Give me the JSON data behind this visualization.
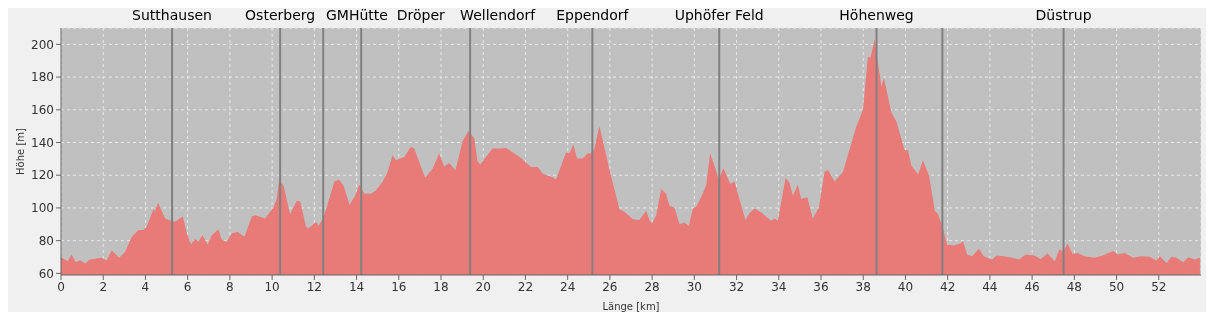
{
  "chart_data": {
    "type": "area",
    "xlabel": "Länge [km]",
    "ylabel": "Höhe [m]",
    "x": [
      0,
      0.32,
      0.5,
      0.7,
      0.9,
      1.14,
      1.37,
      1.93,
      2.16,
      2.4,
      2.75,
      3.03,
      3.35,
      3.67,
      3.9,
      4.06,
      4.38,
      4.45,
      4.6,
      4.93,
      5.17,
      5.4,
      5.77,
      5.96,
      6.16,
      6.35,
      6.5,
      6.7,
      6.95,
      7.14,
      7.46,
      7.6,
      7.85,
      8.09,
      8.37,
      8.69,
      9.04,
      9.2,
      9.67,
      10.06,
      10.22,
      10.33,
      10.54,
      10.85,
      11.17,
      11.33,
      11.6,
      11.7,
      12.1,
      12.2,
      12.43,
      12.75,
      12.95,
      13.17,
      13.38,
      13.67,
      13.93,
      14.13,
      14.37,
      14.68,
      14.92,
      15.23,
      15.47,
      15.7,
      15.86,
      16.26,
      16.57,
      16.73,
      17.25,
      17.6,
      17.91,
      18.15,
      18.39,
      18.68,
      19.03,
      19.3,
      19.58,
      19.73,
      19.86,
      20.44,
      20.84,
      21.08,
      21.79,
      22.26,
      22.58,
      22.82,
      23.29,
      23.45,
      23.92,
      24.08,
      24.27,
      24.44,
      24.71,
      24.95,
      25.1,
      25.26,
      25.5,
      25.78,
      25.97,
      26.45,
      26.69,
      27.08,
      27.4,
      27.72,
      27.87,
      28,
      28.19,
      28.43,
      28.66,
      28.82,
      29.06,
      29.3,
      29.53,
      29.74,
      29.93,
      30.09,
      30.32,
      30.56,
      30.75,
      30.95,
      31.16,
      31.38,
      31.7,
      31.9,
      32.42,
      32.61,
      32.85,
      33.17,
      33.64,
      33.8,
      33.96,
      34.32,
      34.51,
      34.67,
      34.9,
      35.06,
      35.35,
      35.61,
      35.9,
      36.17,
      36.34,
      36.64,
      37.04,
      37.32,
      37.67,
      37.99,
      38.22,
      38.35,
      38.54,
      38.86,
      38.98,
      39.33,
      39.57,
      39.96,
      40.12,
      40.28,
      40.6,
      40.83,
      41.12,
      41.39,
      41.55,
      41.79,
      41.97,
      42.29,
      42.6,
      42.73,
      42.92,
      43.16,
      43.48,
      43.71,
      44.11,
      44.32,
      44.67,
      45.06,
      45.38,
      45.7,
      46.1,
      46.41,
      46.73,
      47.08,
      47.29,
      47.49,
      47.68,
      47.92,
      48.16,
      48.48,
      48.95,
      49.35,
      49.83,
      50.06,
      50.38,
      50.78,
      51.17,
      51.57,
      51.89,
      52.05,
      52.37,
      52.6,
      52.84,
      53.16,
      53.4,
      53.71,
      53.95
    ],
    "series": [
      {
        "color": "#e87a78",
        "values": [
          69.9,
          67.4,
          71.5,
          67,
          68,
          66,
          68.4,
          69.5,
          67.8,
          74.2,
          69.5,
          73,
          82.2,
          86.5,
          86.5,
          88.6,
          99.3,
          97.9,
          103,
          93.5,
          92.5,
          91.5,
          94.8,
          84.5,
          77.7,
          81.2,
          79.1,
          83.3,
          77.7,
          83.3,
          87,
          80.8,
          79.1,
          84.5,
          85.3,
          82.4,
          94.8,
          95.6,
          93.5,
          100.3,
          105.5,
          116.8,
          113.7,
          96.2,
          104.4,
          104,
          89,
          87.4,
          91.5,
          89,
          94.2,
          107.5,
          116.2,
          117.2,
          113.7,
          102,
          107.5,
          114.1,
          108.6,
          108.6,
          110.6,
          115.8,
          121.9,
          132.2,
          129.1,
          131.2,
          137.4,
          136.4,
          118.4,
          124,
          133.3,
          125.4,
          127.5,
          123,
          140.9,
          147,
          142.5,
          128.5,
          126.5,
          136.3,
          136.3,
          136.7,
          130.6,
          125,
          125,
          120.9,
          118.8,
          117.4,
          133.9,
          133.3,
          138.8,
          130.2,
          130.2,
          133.3,
          133.3,
          136,
          150.1,
          134.7,
          124,
          99.3,
          97.7,
          93.1,
          92.7,
          98.3,
          92.7,
          90.7,
          95.2,
          111.6,
          108.6,
          101.4,
          100.3,
          90,
          91.1,
          89,
          99.7,
          100.8,
          106.5,
          113.7,
          133.3,
          126.1,
          117.4,
          124.4,
          114.7,
          116.1,
          92.7,
          96.8,
          99.7,
          97.2,
          92.1,
          93.5,
          92.1,
          118.4,
          115.2,
          107.5,
          114.1,
          105.5,
          106.5,
          93.5,
          100.3,
          122.3,
          123,
          116.2,
          121.9,
          134.3,
          149.7,
          160,
          192.3,
          191.9,
          203.2,
          174.4,
          179.5,
          158.5,
          152.8,
          135.3,
          135.3,
          126,
          120.5,
          129.1,
          119.5,
          98.3,
          96.2,
          87,
          77.7,
          77,
          78.3,
          79.8,
          71.5,
          70.5,
          75,
          70.5,
          68.4,
          70.9,
          70.5,
          69.5,
          68.4,
          71.5,
          70.9,
          68.8,
          72.1,
          67.4,
          74.6,
          73.4,
          78.3,
          71.9,
          72.5,
          70.5,
          69.5,
          70.9,
          73.6,
          71.5,
          72.5,
          69.5,
          70.5,
          70.1,
          67.8,
          70.5,
          66.4,
          70.1,
          69.5,
          66.8,
          69.9,
          68.4,
          69.5
        ]
      }
    ],
    "xlim": [
      0,
      54
    ],
    "xticks": [
      0,
      2,
      4,
      6,
      8,
      10,
      12,
      14,
      16,
      18,
      20,
      22,
      24,
      26,
      28,
      30,
      32,
      34,
      36,
      38,
      40,
      42,
      44,
      46,
      48,
      50,
      52
    ],
    "ylim": [
      59,
      210
    ],
    "yticks": [
      60,
      80,
      100,
      120,
      140,
      160,
      180,
      200
    ],
    "grid": true,
    "legend": false,
    "ref_lines": [
      {
        "axis": "x",
        "value": 5.26,
        "label": "Sutthausen",
        "color": "#808080"
      },
      {
        "axis": "x",
        "value": 10.38,
        "label": "Osterberg",
        "color": "#808080"
      },
      {
        "axis": "x",
        "value": 12.42,
        "label": "GMHütte",
        "color": "#808080"
      },
      {
        "axis": "x",
        "value": 14.22,
        "label": "Dröper",
        "color": "#808080"
      },
      {
        "axis": "x",
        "value": 19.38,
        "label": "Wellendorf",
        "color": "#808080"
      },
      {
        "axis": "x",
        "value": 25.17,
        "label": "Eppendorf",
        "color": "#808080"
      },
      {
        "axis": "x",
        "value": 31.18,
        "label": "Uphöfer Feld",
        "color": "#808080"
      },
      {
        "axis": "x",
        "value": 38.63,
        "label": "Höhenweg",
        "color": "#808080"
      },
      {
        "axis": "x",
        "value": 41.75,
        "color": "#808080"
      },
      {
        "axis": "x",
        "value": 47.49,
        "label": "Düstrup",
        "color": "#808080"
      }
    ]
  }
}
